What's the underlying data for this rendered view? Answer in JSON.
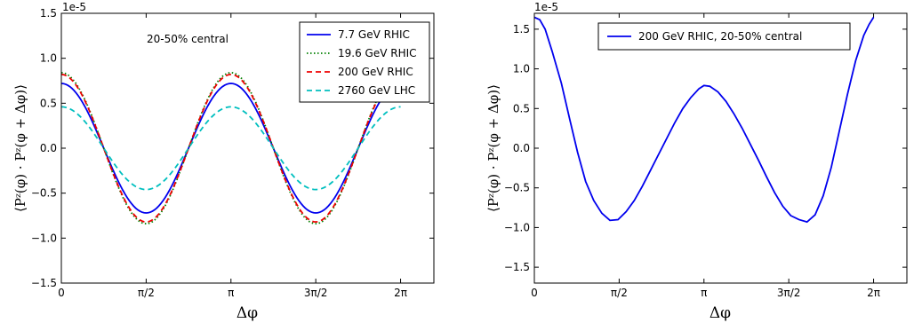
{
  "chart_data": [
    {
      "type": "line",
      "title": "",
      "annotation": "20-50% central",
      "offset_label": "1e-5",
      "xlabel": "Δφ",
      "ylabel": "⟨Pᶻ(φ) · Pᶻ(φ + Δφ)⟩",
      "xlim": [
        0,
        6.9
      ],
      "ylim": [
        -1.5,
        1.5
      ],
      "xticks": [
        0,
        1.5708,
        3.1416,
        4.7124,
        6.2832
      ],
      "xticklabels": [
        "0",
        "π/2",
        "π",
        "3π/2",
        "2π"
      ],
      "yticks": [
        -1.5,
        -1.0,
        -0.5,
        0.0,
        0.5,
        1.0,
        1.5
      ],
      "yticklabels": [
        "−1.5",
        "−1.0",
        "−0.5",
        "0.0",
        "0.5",
        "1.0",
        "1.5"
      ],
      "grid": false,
      "legend_position": "top-right",
      "series": [
        {
          "name": "7.7 GeV RHIC",
          "amplitude": 0.72,
          "color": "#0000ee",
          "dash": "solid"
        },
        {
          "name": "19.6 GeV RHIC",
          "amplitude": 0.84,
          "color": "#008000",
          "dash": "dotted"
        },
        {
          "name": "200 GeV RHIC",
          "amplitude": 0.82,
          "color": "#ee0000",
          "dash": "dashed"
        },
        {
          "name": "2760 GeV LHC",
          "amplitude": 0.46,
          "color": "#00bfbf",
          "dash": "dashed"
        }
      ]
    },
    {
      "type": "line",
      "title": "",
      "offset_label": "1e-5",
      "xlabel": "Δφ",
      "ylabel": "⟨Pᶻ(φ) · Pᶻ(φ + Δφ)⟩",
      "xlim": [
        0,
        6.9
      ],
      "ylim": [
        -1.7,
        1.7
      ],
      "xticks": [
        0,
        1.5708,
        3.1416,
        4.7124,
        6.2832
      ],
      "xticklabels": [
        "0",
        "π/2",
        "π",
        "3π/2",
        "2π"
      ],
      "yticks": [
        -1.5,
        -1.0,
        -0.5,
        0.0,
        0.5,
        1.0,
        1.5
      ],
      "yticklabels": [
        "−1.5",
        "−1.0",
        "−0.5",
        "0.0",
        "0.5",
        "1.0",
        "1.5"
      ],
      "grid": false,
      "legend_position": "top-center",
      "series": [
        {
          "name": "200 GeV RHIC, 20-50% central",
          "color": "#0000ee",
          "dash": "solid",
          "x": [
            0,
            0.1,
            0.2,
            0.33,
            0.5,
            0.65,
            0.8,
            0.95,
            1.1,
            1.25,
            1.4,
            1.55,
            1.7,
            1.85,
            2.0,
            2.15,
            2.3,
            2.45,
            2.6,
            2.75,
            2.9,
            3.05,
            3.1416,
            3.25,
            3.4,
            3.55,
            3.7,
            3.85,
            4.0,
            4.15,
            4.3,
            4.45,
            4.6,
            4.75,
            4.9,
            5.05,
            5.2,
            5.35,
            5.5,
            5.65,
            5.8,
            5.95,
            6.1,
            6.2,
            6.2832
          ],
          "y": [
            1.65,
            1.62,
            1.5,
            1.22,
            0.82,
            0.38,
            -0.05,
            -0.42,
            -0.66,
            -0.82,
            -0.91,
            -0.9,
            -0.8,
            -0.66,
            -0.48,
            -0.28,
            -0.08,
            0.12,
            0.32,
            0.5,
            0.64,
            0.75,
            0.79,
            0.78,
            0.71,
            0.59,
            0.43,
            0.25,
            0.05,
            -0.15,
            -0.36,
            -0.56,
            -0.73,
            -0.85,
            -0.9,
            -0.93,
            -0.84,
            -0.6,
            -0.24,
            0.22,
            0.68,
            1.1,
            1.42,
            1.56,
            1.65
          ]
        }
      ]
    }
  ]
}
